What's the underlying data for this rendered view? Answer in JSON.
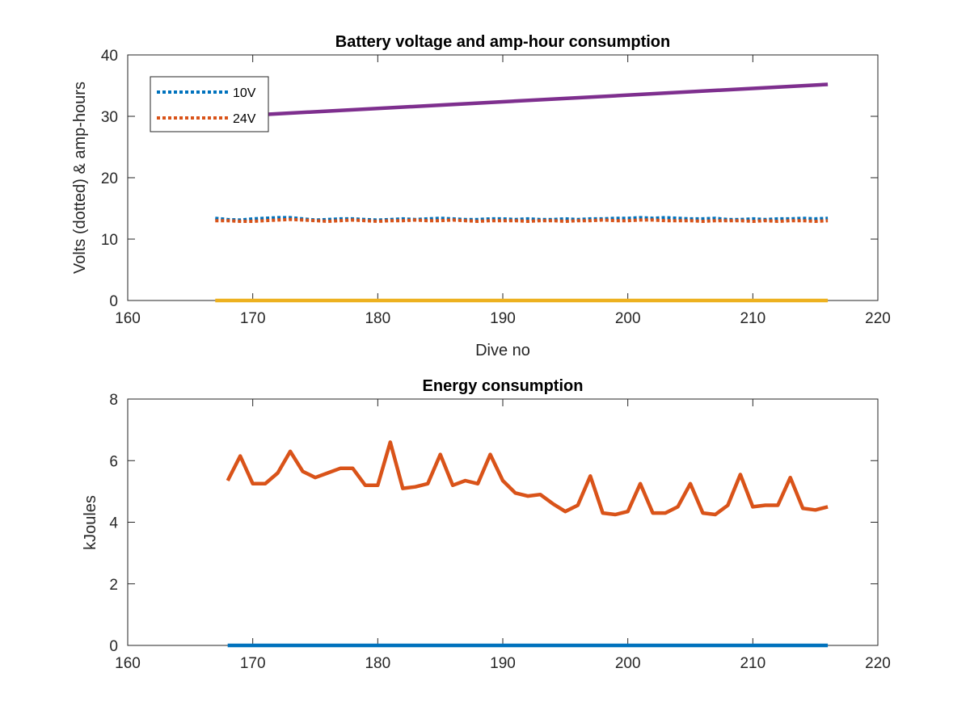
{
  "chart_data": [
    {
      "type": "line",
      "title": "Battery voltage and amp-hour consumption",
      "xlabel": "Dive no",
      "ylabel": "Volts (dotted) & amp-hours",
      "xlim": [
        160,
        220
      ],
      "ylim": [
        0,
        40
      ],
      "x_ticks": [
        "160",
        "170",
        "180",
        "190",
        "200",
        "210",
        "220"
      ],
      "y_ticks": [
        "0",
        "10",
        "20",
        "30",
        "40"
      ],
      "grid": false,
      "legend_position": "top-left",
      "legend": [
        "10V",
        "24V"
      ],
      "series": [
        {
          "name": "10V",
          "style": "dotted",
          "color": "#0072BD",
          "x": [
            167,
            168,
            169,
            170,
            171,
            172,
            173,
            174,
            175,
            176,
            177,
            178,
            179,
            180,
            181,
            182,
            183,
            184,
            185,
            186,
            187,
            188,
            189,
            190,
            191,
            192,
            193,
            194,
            195,
            196,
            197,
            198,
            199,
            200,
            201,
            202,
            203,
            204,
            205,
            206,
            207,
            208,
            209,
            210,
            211,
            212,
            213,
            214,
            215,
            216
          ],
          "values": [
            13.4,
            13.2,
            13.1,
            13.3,
            13.4,
            13.5,
            13.5,
            13.3,
            13.1,
            13.2,
            13.3,
            13.3,
            13.2,
            13.1,
            13.2,
            13.3,
            13.2,
            13.3,
            13.4,
            13.3,
            13.2,
            13.2,
            13.3,
            13.3,
            13.2,
            13.3,
            13.2,
            13.2,
            13.3,
            13.2,
            13.3,
            13.3,
            13.4,
            13.4,
            13.5,
            13.4,
            13.5,
            13.4,
            13.3,
            13.3,
            13.4,
            13.2,
            13.2,
            13.3,
            13.2,
            13.3,
            13.3,
            13.4,
            13.3,
            13.4
          ]
        },
        {
          "name": "24V",
          "style": "dotted",
          "color": "#D95319",
          "x": [
            167,
            168,
            169,
            170,
            171,
            172,
            173,
            174,
            175,
            176,
            177,
            178,
            179,
            180,
            181,
            182,
            183,
            184,
            185,
            186,
            187,
            188,
            189,
            190,
            191,
            192,
            193,
            194,
            195,
            196,
            197,
            198,
            199,
            200,
            201,
            202,
            203,
            204,
            205,
            206,
            207,
            208,
            209,
            210,
            211,
            212,
            213,
            214,
            215,
            216
          ],
          "values": [
            13.0,
            13.0,
            12.9,
            12.9,
            13.0,
            13.1,
            13.2,
            13.1,
            13.0,
            12.9,
            13.0,
            13.1,
            13.0,
            12.9,
            13.0,
            13.0,
            13.1,
            13.0,
            13.0,
            13.1,
            13.0,
            12.9,
            13.0,
            13.0,
            13.0,
            12.9,
            13.0,
            13.0,
            12.9,
            13.0,
            13.0,
            13.1,
            13.0,
            13.0,
            13.1,
            13.1,
            13.0,
            13.0,
            13.0,
            12.9,
            13.0,
            13.0,
            13.0,
            12.9,
            13.0,
            12.9,
            13.0,
            13.0,
            12.9,
            13.0
          ]
        },
        {
          "style": "solid",
          "color": "#EDB120",
          "x": [
            167,
            216
          ],
          "values": [
            0,
            0
          ]
        },
        {
          "style": "solid",
          "color": "#7E2F8E",
          "x": [
            170,
            216
          ],
          "values": [
            30.2,
            35.2
          ]
        }
      ]
    },
    {
      "type": "line",
      "title": "Energy consumption",
      "xlabel": "",
      "ylabel": "kJoules",
      "xlim": [
        160,
        220
      ],
      "ylim": [
        0,
        8
      ],
      "x_ticks": [
        "160",
        "170",
        "180",
        "190",
        "200",
        "210",
        "220"
      ],
      "y_ticks": [
        "0",
        "2",
        "4",
        "6",
        "8"
      ],
      "grid": false,
      "series": [
        {
          "style": "solid",
          "color": "#D95319",
          "x": [
            168,
            169,
            170,
            171,
            172,
            173,
            174,
            175,
            176,
            177,
            178,
            179,
            180,
            181,
            182,
            183,
            184,
            185,
            186,
            187,
            188,
            189,
            190,
            191,
            192,
            193,
            194,
            195,
            196,
            197,
            198,
            199,
            200,
            201,
            202,
            203,
            204,
            205,
            206,
            207,
            208,
            209,
            210,
            211,
            212,
            213,
            214,
            215,
            216
          ],
          "values": [
            5.35,
            6.15,
            5.25,
            5.25,
            5.6,
            6.3,
            5.65,
            5.45,
            5.6,
            5.75,
            5.75,
            5.2,
            5.2,
            6.6,
            5.1,
            5.15,
            5.25,
            6.2,
            5.2,
            5.35,
            5.25,
            6.2,
            5.35,
            4.95,
            4.85,
            4.9,
            4.6,
            4.35,
            4.55,
            5.5,
            4.3,
            4.25,
            4.35,
            5.25,
            4.3,
            4.3,
            4.5,
            5.25,
            4.3,
            4.25,
            4.55,
            5.55,
            4.5,
            4.55,
            4.55,
            5.45,
            4.45,
            4.4,
            4.5
          ]
        },
        {
          "style": "solid",
          "color": "#0072BD",
          "x": [
            168,
            216
          ],
          "values": [
            0,
            0
          ]
        }
      ]
    }
  ]
}
